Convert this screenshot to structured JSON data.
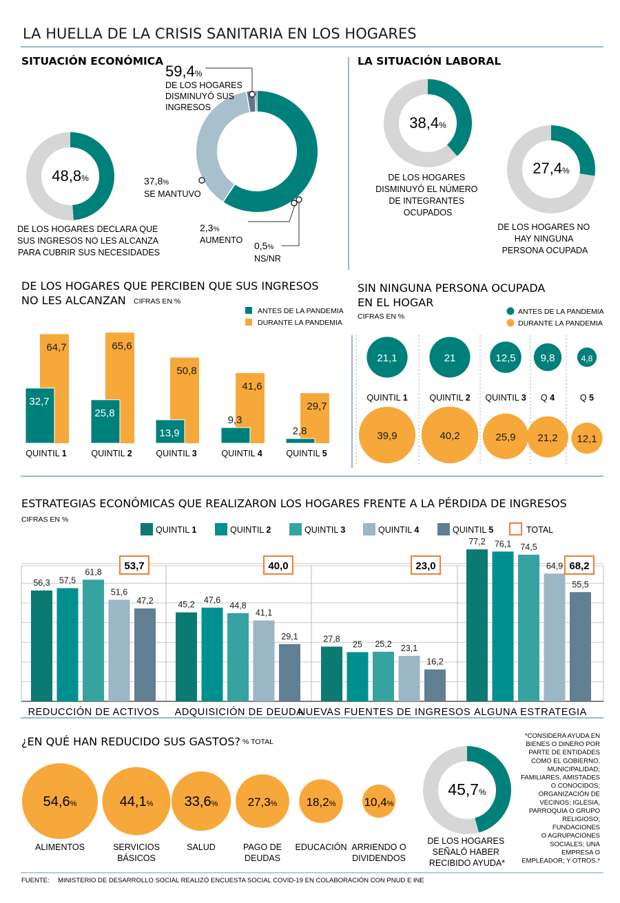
{
  "header": {
    "title": "LA HUELLA DE LA CRISIS SANITARIA EN LOS HOGARES"
  },
  "colors": {
    "teal": "#00807a",
    "q1": "#0b7a72",
    "q2": "#00908f",
    "q3": "#36a3a0",
    "q4": "#9bb6c5",
    "q5": "#617f93",
    "orange": "#f7a83a",
    "lightblue": "#a8bfcc",
    "gray": "#d6d6d6",
    "slate": "#5d7787",
    "total_border": "#f07d33",
    "rule": "#9bb9c7"
  },
  "situacion_economica": {
    "title": "SITUACIÓN ECONÓMICA",
    "donut_small": {
      "value": "48,8",
      "unit": "%",
      "share": 48.8,
      "caption": [
        "DE LOS HOGARES DECLARA QUE",
        "SUS INGRESOS NO LES ALCANZA",
        "PARA CUBRIR SUS NECESIDADES"
      ]
    },
    "donut_big": {
      "slices": [
        {
          "label": "DISMINUYÓ",
          "share": 59.4
        },
        {
          "label": "SE MANTUVO",
          "share": 37.8
        },
        {
          "label": "AUMENTO",
          "share": 2.3
        },
        {
          "label": "NS/NR",
          "share": 0.5
        }
      ],
      "dec_value": "59,4",
      "dec_text": [
        "DE LOS HOGARES",
        "DISMINUYÓ SUS",
        "INGRESOS"
      ],
      "man_value": "37,8",
      "man_text": "SE MANTUVO",
      "aum_value": "2,3",
      "aum_text": "AUMENTO",
      "ns_value": "0,5",
      "ns_text": "NS/NR",
      "unit": "%"
    }
  },
  "situacion_laboral": {
    "title": "LA SITUACIÓN LABORAL",
    "donut1": {
      "value": "38,4",
      "unit": "%",
      "share": 38.4,
      "caption": [
        "DE LOS HOGARES",
        "DISMINUYÓ EL NÚMERO",
        "DE INTEGRANTES",
        "OCUPADOS"
      ]
    },
    "donut2": {
      "value": "27,4",
      "unit": "%",
      "share": 27.4,
      "caption": [
        "DE LOS HOGARES NO",
        "HAY NINGUNA",
        "PERSONA OCUPADA"
      ]
    }
  },
  "ingresos_chart": {
    "title_line1": "DE LOS HOGARES QUE PERCIBEN QUE SUS INGRESOS",
    "title_line2": "NO LES ALCANZAN",
    "subtitle": "CIFRAS EN %",
    "legend": [
      "ANTES DE LA PANDEMIA",
      "DURANTE LA PANDEMIA"
    ],
    "quintil_prefix": "QUINTIL",
    "quintil_numbers": [
      "1",
      "2",
      "3",
      "4",
      "5"
    ]
  },
  "sin_persona_chart": {
    "title_line1": "SIN NINGUNA PERSONA OCUPADA",
    "title_line2": "EN EL HOGAR",
    "subtitle": "CIFRAS EN %",
    "legend": [
      "ANTES DE LA PANDEMIA",
      "DURANTE LA PANDEMIA"
    ],
    "labels": [
      {
        "prefix": "QUINTIL ",
        "num": "1"
      },
      {
        "prefix": "QUINTIL ",
        "num": "2"
      },
      {
        "prefix": "QUINTIL ",
        "num": "3"
      },
      {
        "prefix": "Q ",
        "num": "4"
      },
      {
        "prefix": "Q ",
        "num": "5"
      }
    ]
  },
  "estrategias_chart": {
    "title": "ESTRATEGIAS ECONÓMICAS QUE REALIZARON LOS HOGARES FRENTE A LA PÉRDIDA DE INGRESOS",
    "subtitle": "CIFRAS EN %",
    "legend_prefix": "QUINTIL",
    "legend_numbers": [
      "1",
      "2",
      "3",
      "4",
      "5"
    ],
    "legend_total": "TOTAL"
  },
  "gastos": {
    "title": "¿EN QUÉ HAN REDUCIDO SUS GASTOS?",
    "subtitle": "% TOTAL",
    "unit": "%",
    "items": [
      {
        "value": "54,6",
        "share": 54.6,
        "label": [
          "ALIMENTOS"
        ]
      },
      {
        "value": "44,1",
        "share": 44.1,
        "label": [
          "SERVICIOS",
          "BÁSICOS"
        ]
      },
      {
        "value": "33,6",
        "share": 33.6,
        "label": [
          "SALUD"
        ]
      },
      {
        "value": "27,3",
        "share": 27.3,
        "label": [
          "PAGO DE",
          "DEUDAS"
        ]
      },
      {
        "value": "18,2",
        "share": 18.2,
        "label": [
          "EDUCACIÓN"
        ]
      },
      {
        "value": "10,4",
        "share": 10.4,
        "label": [
          "ARRIENDO O",
          "DIVIDENDOS"
        ]
      }
    ]
  },
  "ayuda": {
    "value": "45,7",
    "unit": "%",
    "share": 45.7,
    "caption": [
      "DE LOS HOGARES",
      "SEÑALÓ HABER",
      "RECIBIDO AYUDA*"
    ],
    "note": [
      "*CONSIDERA AYUDA EN",
      "BIENES O DINERO POR",
      "PARTE DE ENTIDADES",
      "COMO EL GOBIERNO,",
      "MUNICIPALIDAD;",
      "FAMILIARES, AMISTADES",
      "O CONOCIDOS;",
      "ORGANIZACIÓN DE",
      "VECINOS; IGLESIA,",
      "PARROQUIA O GRUPO",
      "RELIGIOSO;",
      "FUNDACIONES",
      "O AGRUPACIONES",
      "SOCIALES; UNA",
      "EMPRESA O",
      "EMPLEADOR; Y OTROS.*"
    ]
  },
  "footer": {
    "label": "FUENTE:",
    "text": "MINISTERIO DE DESARROLLO SOCIAL REALIZÓ ENCUESTA SOCIAL COVID-19 EN COLABORACIÓN CON PNUD E INE"
  },
  "chart_data": [
    {
      "type": "bar",
      "title": "DE LOS HOGARES QUE PERCIBEN QUE SUS INGRESOS NO LES ALCANZAN",
      "categories": [
        "QUINTIL 1",
        "QUINTIL 2",
        "QUINTIL 3",
        "QUINTIL 4",
        "QUINTIL 5"
      ],
      "series": [
        {
          "name": "ANTES DE LA PANDEMIA",
          "values": [
            32.7,
            25.8,
            13.9,
            9.3,
            2.8
          ],
          "labels": [
            "32,7",
            "25,8",
            "13,9",
            "9,3",
            "2,8"
          ]
        },
        {
          "name": "DURANTE LA PANDEMIA",
          "values": [
            64.7,
            65.6,
            50.8,
            41.6,
            29.7
          ],
          "labels": [
            "64,7",
            "65,6",
            "50,8",
            "41,6",
            "29,7"
          ]
        }
      ],
      "ylim": [
        0,
        70
      ]
    },
    {
      "type": "bubble",
      "title": "SIN NINGUNA PERSONA OCUPADA EN EL HOGAR",
      "categories": [
        "QUINTIL 1",
        "QUINTIL 2",
        "QUINTIL 3",
        "Q 4",
        "Q 5"
      ],
      "series": [
        {
          "name": "ANTES DE LA PANDEMIA",
          "values": [
            21.1,
            21,
            12.5,
            9.8,
            4.8
          ],
          "labels": [
            "21,1",
            "21",
            "12,5",
            "9,8",
            "4,8"
          ]
        },
        {
          "name": "DURANTE LA PANDEMIA",
          "values": [
            39.9,
            40.2,
            25.9,
            21.2,
            12.1
          ],
          "labels": [
            "39,9",
            "40,2",
            "25,9",
            "21,2",
            "12,1"
          ]
        }
      ]
    },
    {
      "type": "bar",
      "title": "ESTRATEGIAS ECONÓMICAS QUE REALIZARON LOS HOGARES FRENTE A LA PÉRDIDA DE INGRESOS",
      "categories": [
        "REDUCCIÓN DE ACTIVOS",
        "ADQUISICIÓN DE DEUDA",
        "NUEVAS FUENTES DE INGRESOS",
        "ALGUNA ESTRATEGIA"
      ],
      "series": [
        {
          "name": "QUINTIL 1",
          "values": [
            56.3,
            45.2,
            27.8,
            77.2
          ],
          "labels": [
            "56,3",
            "45,2",
            "27,8",
            "77,2"
          ]
        },
        {
          "name": "QUINTIL 2",
          "values": [
            57.5,
            47.6,
            25,
            76.1
          ],
          "labels": [
            "57,5",
            "47,6",
            "25",
            "76,1"
          ]
        },
        {
          "name": "QUINTIL 3",
          "values": [
            61.8,
            44.8,
            25.2,
            74.5
          ],
          "labels": [
            "61,8",
            "44,8",
            "25,2",
            "74,5"
          ]
        },
        {
          "name": "QUINTIL 4",
          "values": [
            51.6,
            41.1,
            23.1,
            64.9
          ],
          "labels": [
            "51,6",
            "41,1",
            "23,1",
            "64,9"
          ]
        },
        {
          "name": "QUINTIL 5",
          "values": [
            47.2,
            29.1,
            16.2,
            55.5
          ],
          "labels": [
            "47,2",
            "29,1",
            "16,2",
            "55,5"
          ]
        }
      ],
      "totals": [
        53.7,
        40.0,
        23.0,
        68.2
      ],
      "total_labels": [
        "53,7",
        "40,0",
        "23,0",
        "68,2"
      ],
      "ylim": [
        0,
        80
      ],
      "grid": true
    }
  ]
}
